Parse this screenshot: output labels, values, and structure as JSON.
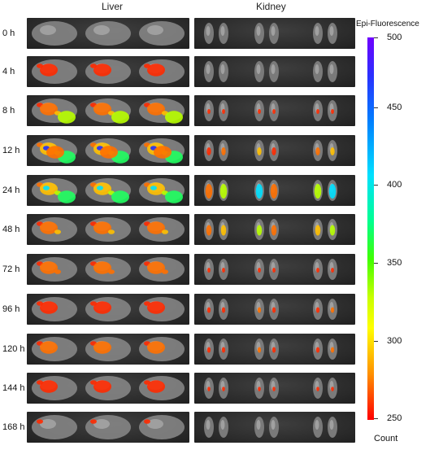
{
  "headers": {
    "left": "Liver",
    "right": "Kidney"
  },
  "rows": [
    "0 h",
    "4 h",
    "8 h",
    "12 h",
    "24 h",
    "48 h",
    "72 h",
    "96 h",
    "120 h",
    "144 h",
    "168 h"
  ],
  "signal": {
    "liver": [
      0,
      0.25,
      0.62,
      0.95,
      0.85,
      0.55,
      0.45,
      0.35,
      0.4,
      0.25,
      0.1
    ],
    "kidney": [
      0,
      0.05,
      0.1,
      0.3,
      0.7,
      0.45,
      0.1,
      0.15,
      0.15,
      0.08,
      0.03
    ]
  },
  "colorbar": {
    "title": "Epi-Fluorescence",
    "ticks": [
      "500",
      "450",
      "400",
      "350",
      "300",
      "250"
    ],
    "unit": "Count",
    "colors": [
      "#7000ff",
      "#0080ff",
      "#00e0ff",
      "#40ff00",
      "#ffff00",
      "#ff0000"
    ]
  }
}
